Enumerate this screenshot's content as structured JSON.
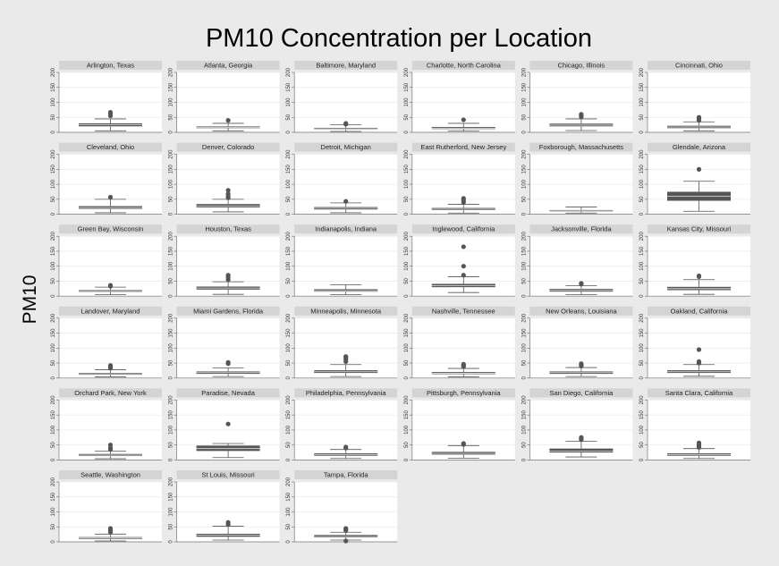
{
  "chart_data": {
    "type": "box",
    "title": "PM10 Concentration per Location",
    "ylabel": "PM10",
    "xlabel": "",
    "ylim": [
      0,
      200
    ],
    "yticks": [
      0,
      50,
      100,
      150,
      200
    ],
    "ncols": 6,
    "box_color": "#555555",
    "panels": [
      {
        "label": "Arlington, Texas",
        "whisker_low": 5,
        "q1": 20,
        "median": 25,
        "q3": 30,
        "whisker_high": 45,
        "outliers": [
          55,
          63,
          67
        ]
      },
      {
        "label": "Atlanta, Georgia",
        "whisker_low": 5,
        "q1": 14,
        "median": 17,
        "q3": 20,
        "whisker_high": 30,
        "outliers": [
          40
        ]
      },
      {
        "label": "Baltimore, Maryland",
        "whisker_low": 3,
        "q1": 10,
        "median": 12,
        "q3": 15,
        "whisker_high": 25,
        "outliers": [
          27,
          30
        ]
      },
      {
        "label": "Charlotte, North Carolina",
        "whisker_low": 4,
        "q1": 11,
        "median": 14,
        "q3": 18,
        "whisker_high": 30,
        "outliers": [
          42
        ]
      },
      {
        "label": "Chicago, Illinois",
        "whisker_low": 6,
        "q1": 20,
        "median": 24,
        "q3": 29,
        "whisker_high": 45,
        "outliers": [
          52,
          56,
          60
        ]
      },
      {
        "label": "Cincinnati, Ohio",
        "whisker_low": 5,
        "q1": 14,
        "median": 18,
        "q3": 22,
        "whisker_high": 35,
        "outliers": [
          40,
          45,
          50
        ]
      },
      {
        "label": "Cleveland, Ohio",
        "whisker_low": 5,
        "q1": 18,
        "median": 22,
        "q3": 27,
        "whisker_high": 50,
        "outliers": [
          57
        ]
      },
      {
        "label": "Denver, Colorado",
        "whisker_low": 8,
        "q1": 23,
        "median": 28,
        "q3": 34,
        "whisker_high": 50,
        "outliers": [
          55,
          60,
          68,
          80
        ]
      },
      {
        "label": "Detroit, Michigan",
        "whisker_low": 5,
        "q1": 16,
        "median": 20,
        "q3": 24,
        "whisker_high": 38,
        "outliers": [
          43
        ]
      },
      {
        "label": "East Rutherford, New Jersey",
        "whisker_low": 4,
        "q1": 14,
        "median": 17,
        "q3": 21,
        "whisker_high": 33,
        "outliers": [
          40,
          47,
          53
        ]
      },
      {
        "label": "Foxborough, Massachusetts",
        "whisker_low": 4,
        "q1": 9,
        "median": 11,
        "q3": 14,
        "whisker_high": 24,
        "outliers": []
      },
      {
        "label": "Glendale, Arizona",
        "whisker_low": 10,
        "q1": 45,
        "median": 60,
        "q3": 75,
        "whisker_high": 110,
        "outliers": [
          150
        ]
      },
      {
        "label": "Green Bay, Wisconsin",
        "whisker_low": 5,
        "q1": 14,
        "median": 16,
        "q3": 20,
        "whisker_high": 30,
        "outliers": [
          33,
          36
        ]
      },
      {
        "label": "Houston, Texas",
        "whisker_low": 6,
        "q1": 22,
        "median": 27,
        "q3": 32,
        "whisker_high": 48,
        "outliers": [
          55,
          63,
          70
        ]
      },
      {
        "label": "Indianapolis, Indiana",
        "whisker_low": 5,
        "q1": 15,
        "median": 18,
        "q3": 23,
        "whisker_high": 38,
        "outliers": []
      },
      {
        "label": "Inglewood, California",
        "whisker_low": 12,
        "q1": 30,
        "median": 35,
        "q3": 41,
        "whisker_high": 65,
        "outliers": [
          70,
          100,
          165
        ]
      },
      {
        "label": "Jacksonville, Florida",
        "whisker_low": 5,
        "q1": 15,
        "median": 19,
        "q3": 24,
        "whisker_high": 35,
        "outliers": [
          40,
          43
        ]
      },
      {
        "label": "Kansas City, Missouri",
        "whisker_low": 6,
        "q1": 20,
        "median": 25,
        "q3": 31,
        "whisker_high": 55,
        "outliers": [
          65,
          68
        ]
      },
      {
        "label": "Landover, Maryland",
        "whisker_low": 4,
        "q1": 11,
        "median": 14,
        "q3": 17,
        "whisker_high": 28,
        "outliers": [
          33,
          38,
          42
        ]
      },
      {
        "label": "Miami Gardens, Florida",
        "whisker_low": 5,
        "q1": 14,
        "median": 18,
        "q3": 22,
        "whisker_high": 34,
        "outliers": [
          48,
          52
        ]
      },
      {
        "label": "Minneapolis, Minnesota",
        "whisker_low": 5,
        "q1": 17,
        "median": 21,
        "q3": 26,
        "whisker_high": 45,
        "outliers": [
          55,
          62,
          68,
          72
        ]
      },
      {
        "label": "Nashville, Tennessee",
        "whisker_low": 4,
        "q1": 13,
        "median": 16,
        "q3": 20,
        "whisker_high": 32,
        "outliers": [
          38,
          42,
          46
        ]
      },
      {
        "label": "New Orleans, Louisiana",
        "whisker_low": 5,
        "q1": 14,
        "median": 18,
        "q3": 22,
        "whisker_high": 35,
        "outliers": [
          40,
          44,
          48
        ]
      },
      {
        "label": "Oakland, California",
        "whisker_low": 6,
        "q1": 17,
        "median": 21,
        "q3": 26,
        "whisker_high": 45,
        "outliers": [
          50,
          55,
          95
        ]
      },
      {
        "label": "Orchard Park, New York",
        "whisker_low": 4,
        "q1": 13,
        "median": 16,
        "q3": 20,
        "whisker_high": 30,
        "outliers": [
          35,
          40,
          50
        ]
      },
      {
        "label": "Paradise, Nevada",
        "whisker_low": 8,
        "q1": 30,
        "median": 38,
        "q3": 48,
        "whisker_high": 55,
        "outliers": [
          120
        ]
      },
      {
        "label": "Philadelphia, Pennsylvania",
        "whisker_low": 5,
        "q1": 14,
        "median": 18,
        "q3": 22,
        "whisker_high": 35,
        "outliers": [
          40,
          43
        ]
      },
      {
        "label": "Pittsburgh, Pennsylvania",
        "whisker_low": 6,
        "q1": 18,
        "median": 22,
        "q3": 27,
        "whisker_high": 48,
        "outliers": [
          52,
          55
        ]
      },
      {
        "label": "San Diego, California",
        "whisker_low": 10,
        "q1": 25,
        "median": 30,
        "q3": 38,
        "whisker_high": 62,
        "outliers": [
          68,
          72,
          75
        ]
      },
      {
        "label": "Santa Clara, California",
        "whisker_low": 5,
        "q1": 14,
        "median": 18,
        "q3": 22,
        "whisker_high": 38,
        "outliers": [
          42,
          47,
          52,
          57
        ]
      },
      {
        "label": "Seattle, Washington",
        "whisker_low": 3,
        "q1": 10,
        "median": 13,
        "q3": 16,
        "whisker_high": 26,
        "outliers": [
          32,
          38,
          45
        ]
      },
      {
        "label": "St Louis, Missouri",
        "whisker_low": 6,
        "q1": 17,
        "median": 22,
        "q3": 27,
        "whisker_high": 52,
        "outliers": [
          58,
          65
        ]
      },
      {
        "label": "Tampa, Florida",
        "whisker_low": 6,
        "q1": 15,
        "median": 18,
        "q3": 23,
        "whisker_high": 32,
        "outliers": [
          3,
          38,
          42,
          45
        ]
      }
    ]
  }
}
